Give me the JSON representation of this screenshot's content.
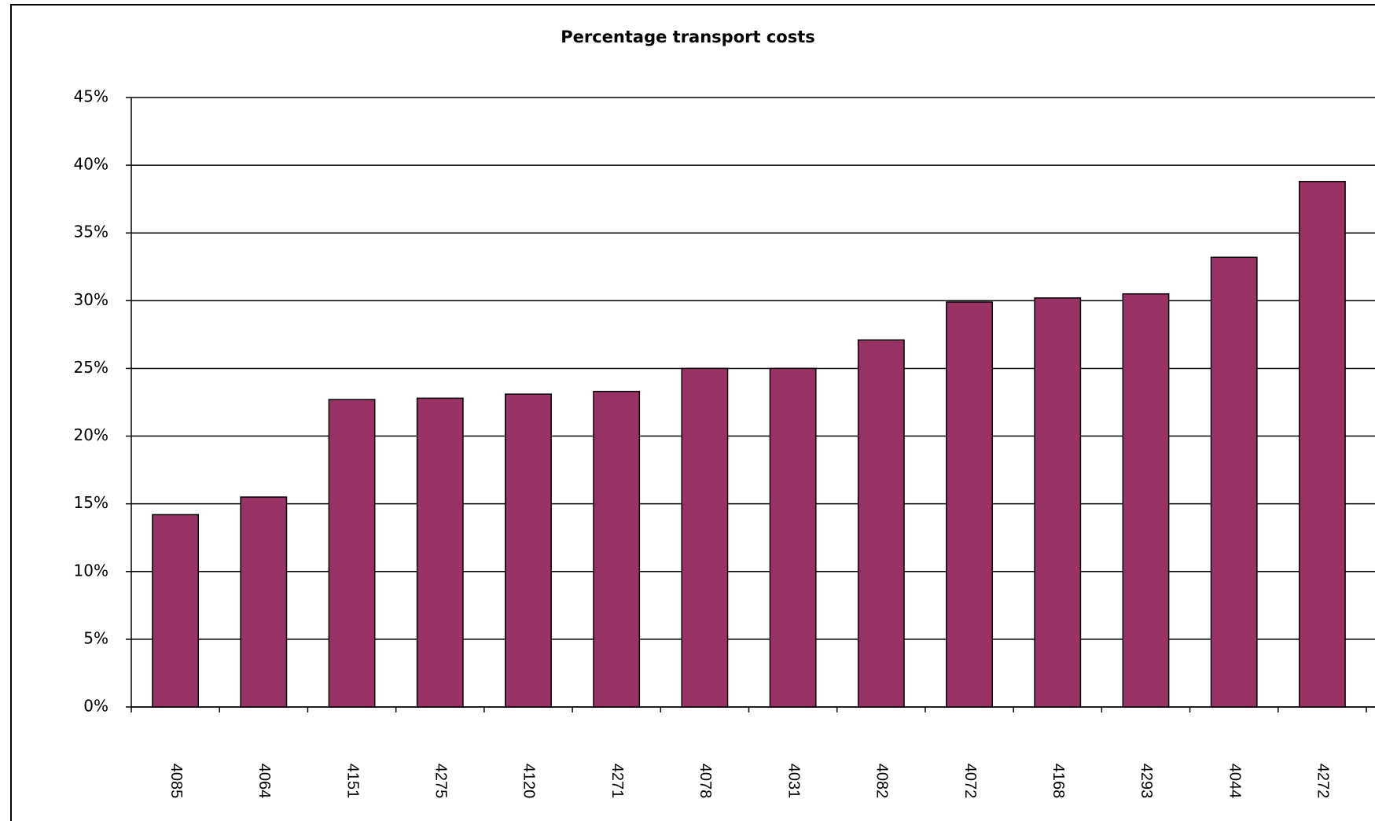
{
  "chart_data": {
    "type": "bar",
    "title": "Percentage transport costs",
    "categories": [
      "4085",
      "4064",
      "4151",
      "4275",
      "4120",
      "4271",
      "4078",
      "4031",
      "4082",
      "4072",
      "4168",
      "4293",
      "4044",
      "4272"
    ],
    "values": [
      14.2,
      15.5,
      22.7,
      22.8,
      23.1,
      23.3,
      25.0,
      25.0,
      27.1,
      29.9,
      30.2,
      30.5,
      33.2,
      38.8
    ],
    "color": "#993366",
    "ylim": [
      0,
      45
    ],
    "yticks": [
      {
        "value": 0,
        "label": "0%"
      },
      {
        "value": 5,
        "label": "5%"
      },
      {
        "value": 10,
        "label": "10%"
      },
      {
        "value": 15,
        "label": "15%"
      },
      {
        "value": 20,
        "label": "20%"
      },
      {
        "value": 25,
        "label": "25%"
      },
      {
        "value": 30,
        "label": "30%"
      },
      {
        "value": 35,
        "label": "35%"
      },
      {
        "value": 40,
        "label": "40%"
      },
      {
        "value": 45,
        "label": "45%"
      }
    ],
    "grid": true
  }
}
